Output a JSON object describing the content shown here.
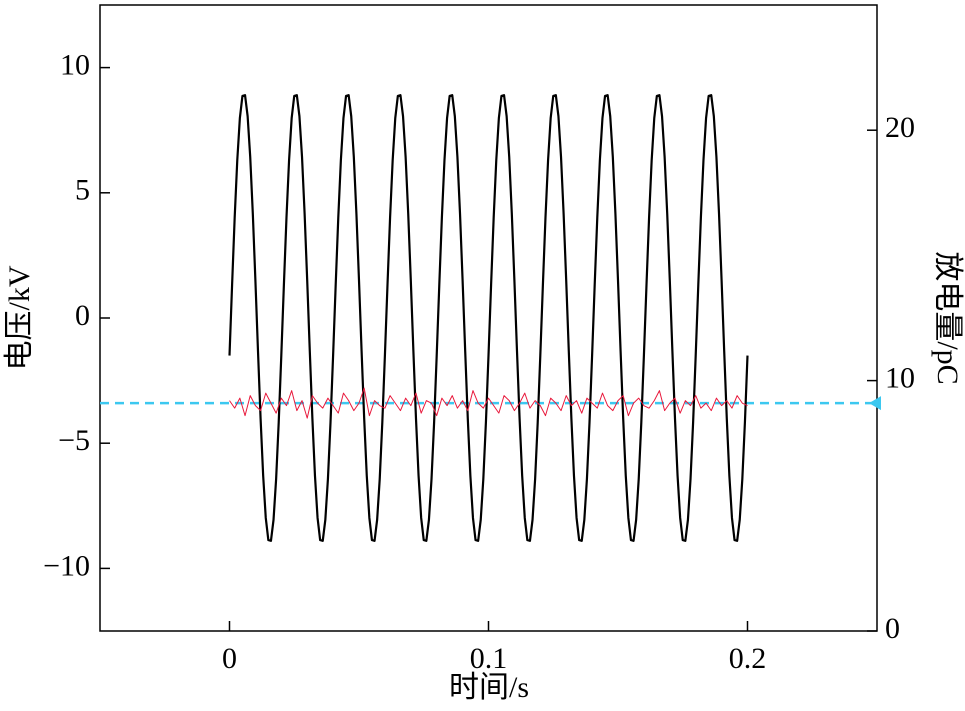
{
  "chart_data": {
    "type": "line",
    "xlabel": "时间/s",
    "ylabel": "电压/kV",
    "y2label": "放电量/pC",
    "xlim": [
      -0.05,
      0.25
    ],
    "xticks": [
      0,
      0.1,
      0.2
    ],
    "ylim": [
      -12.5,
      12.5
    ],
    "yticks": [
      {
        "value": -10,
        "label": "−10"
      },
      {
        "value": -5,
        "label": "−5"
      },
      0,
      5,
      10
    ],
    "y2lim": [
      0,
      25
    ],
    "y2ticks": [
      0,
      10,
      20
    ],
    "reference_line": {
      "value": 9.1,
      "axis": "y2",
      "color": "#3cc8f0"
    },
    "series": [
      {
        "color": "#000000",
        "axis": "y",
        "x": [
          0,
          0.001,
          0.002,
          0.003,
          0.004,
          0.005,
          0.006,
          0.007,
          0.008,
          0.009,
          0.01,
          0.011,
          0.012,
          0.013,
          0.014,
          0.015,
          0.016,
          0.017,
          0.018,
          0.019,
          0.02,
          0.021,
          0.022,
          0.023,
          0.024,
          0.025,
          0.026,
          0.027,
          0.028,
          0.029,
          0.03,
          0.031,
          0.032,
          0.033,
          0.034,
          0.035,
          0.036,
          0.037,
          0.038,
          0.039,
          0.04,
          0.041,
          0.042,
          0.043,
          0.044,
          0.045,
          0.046,
          0.047,
          0.048,
          0.049,
          0.05,
          0.051,
          0.052,
          0.053,
          0.054,
          0.055,
          0.056,
          0.057,
          0.058,
          0.059,
          0.06,
          0.061,
          0.062,
          0.063,
          0.064,
          0.065,
          0.066,
          0.067,
          0.068,
          0.069,
          0.07,
          0.071,
          0.072,
          0.073,
          0.074,
          0.075,
          0.076,
          0.077,
          0.078,
          0.079,
          0.08,
          0.081,
          0.082,
          0.083,
          0.084,
          0.085,
          0.086,
          0.087,
          0.088,
          0.089,
          0.09,
          0.091,
          0.092,
          0.093,
          0.094,
          0.095,
          0.096,
          0.097,
          0.098,
          0.099,
          0.1,
          0.101,
          0.102,
          0.103,
          0.104,
          0.105,
          0.106,
          0.107,
          0.108,
          0.109,
          0.11,
          0.111,
          0.112,
          0.113,
          0.114,
          0.115,
          0.116,
          0.117,
          0.118,
          0.119,
          0.12,
          0.121,
          0.122,
          0.123,
          0.124,
          0.125,
          0.126,
          0.127,
          0.128,
          0.129,
          0.13,
          0.131,
          0.132,
          0.133,
          0.134,
          0.135,
          0.136,
          0.137,
          0.138,
          0.139,
          0.14,
          0.141,
          0.142,
          0.143,
          0.144,
          0.145,
          0.146,
          0.147,
          0.148,
          0.149,
          0.15,
          0.151,
          0.152,
          0.153,
          0.154,
          0.155,
          0.156,
          0.157,
          0.158,
          0.159,
          0.16,
          0.161,
          0.162,
          0.163,
          0.164,
          0.165,
          0.166,
          0.167,
          0.168,
          0.169,
          0.17,
          0.171,
          0.172,
          0.173,
          0.174,
          0.175,
          0.176,
          0.177,
          0.178,
          0.179,
          0.18,
          0.181,
          0.182,
          0.183,
          0.184,
          0.185,
          0.186,
          0.187,
          0.188,
          0.189,
          0.19,
          0.191,
          0.192,
          0.193,
          0.194,
          0.195,
          0.196,
          0.197,
          0.198,
          0.199,
          0.2
        ],
        "values": [
          -1.5,
          1.32,
          4.01,
          6.3,
          7.98,
          8.87,
          8.9,
          8.06,
          6.43,
          4.17,
          1.5,
          -1.32,
          -4.01,
          -6.3,
          -7.98,
          -8.87,
          -8.9,
          -8.06,
          -6.43,
          -4.17,
          -1.5,
          1.32,
          4.01,
          6.3,
          7.98,
          8.87,
          8.9,
          8.06,
          6.43,
          4.17,
          1.5,
          -1.32,
          -4.01,
          -6.3,
          -7.98,
          -8.87,
          -8.9,
          -8.06,
          -6.43,
          -4.17,
          -1.5,
          1.32,
          4.01,
          6.3,
          7.98,
          8.87,
          8.9,
          8.06,
          6.43,
          4.17,
          1.5,
          -1.32,
          -4.01,
          -6.3,
          -7.98,
          -8.87,
          -8.9,
          -8.06,
          -6.43,
          -4.17,
          -1.5,
          1.32,
          4.01,
          6.3,
          7.98,
          8.87,
          8.9,
          8.06,
          6.43,
          4.17,
          1.5,
          -1.32,
          -4.01,
          -6.3,
          -7.98,
          -8.87,
          -8.9,
          -8.06,
          -6.43,
          -4.17,
          -1.5,
          1.32,
          4.01,
          6.3,
          7.98,
          8.87,
          8.9,
          8.06,
          6.43,
          4.17,
          1.5,
          -1.32,
          -4.01,
          -6.3,
          -7.98,
          -8.87,
          -8.9,
          -8.06,
          -6.43,
          -4.17,
          -1.5,
          1.32,
          4.01,
          6.3,
          7.98,
          8.87,
          8.9,
          8.06,
          6.43,
          4.17,
          1.5,
          -1.32,
          -4.01,
          -6.3,
          -7.98,
          -8.87,
          -8.9,
          -8.06,
          -6.43,
          -4.17,
          -1.5,
          1.32,
          4.01,
          6.3,
          7.98,
          8.87,
          8.9,
          8.06,
          6.43,
          4.17,
          1.5,
          -1.32,
          -4.01,
          -6.3,
          -7.98,
          -8.87,
          -8.9,
          -8.06,
          -6.43,
          -4.17,
          -1.5,
          1.32,
          4.01,
          6.3,
          7.98,
          8.87,
          8.9,
          8.06,
          6.43,
          4.17,
          1.5,
          -1.32,
          -4.01,
          -6.3,
          -7.98,
          -8.87,
          -8.9,
          -8.06,
          -6.43,
          -4.17,
          -1.5,
          1.32,
          4.01,
          6.3,
          7.98,
          8.87,
          8.9,
          8.06,
          6.43,
          4.17,
          1.5,
          -1.32,
          -4.01,
          -6.3,
          -7.98,
          -8.87,
          -8.9,
          -8.06,
          -6.43,
          -4.17,
          -1.5,
          1.32,
          4.01,
          6.3,
          7.98,
          8.87,
          8.9,
          8.06,
          6.43,
          4.17,
          1.5,
          -1.32,
          -4.01,
          -6.3,
          -7.98,
          -8.87,
          -8.9,
          -8.06,
          -6.43,
          -4.17,
          -1.5
        ]
      },
      {
        "color": "#e8193c",
        "axis": "y2",
        "x": [
          0,
          0.002,
          0.004,
          0.006,
          0.008,
          0.01,
          0.012,
          0.014,
          0.016,
          0.018,
          0.02,
          0.022,
          0.024,
          0.026,
          0.028,
          0.03,
          0.032,
          0.034,
          0.036,
          0.038,
          0.04,
          0.042,
          0.044,
          0.046,
          0.048,
          0.05,
          0.052,
          0.054,
          0.056,
          0.058,
          0.06,
          0.062,
          0.064,
          0.066,
          0.068,
          0.07,
          0.072,
          0.074,
          0.076,
          0.078,
          0.08,
          0.082,
          0.084,
          0.086,
          0.088,
          0.09,
          0.092,
          0.094,
          0.096,
          0.098,
          0.1,
          0.102,
          0.104,
          0.106,
          0.108,
          0.11,
          0.112,
          0.114,
          0.116,
          0.118,
          0.12,
          0.122,
          0.124,
          0.126,
          0.128,
          0.13,
          0.132,
          0.134,
          0.136,
          0.138,
          0.14,
          0.142,
          0.144,
          0.146,
          0.148,
          0.15,
          0.152,
          0.154,
          0.156,
          0.158,
          0.16,
          0.162,
          0.164,
          0.166,
          0.168,
          0.17,
          0.172,
          0.174,
          0.176,
          0.178,
          0.18,
          0.182,
          0.184,
          0.186,
          0.188,
          0.19,
          0.192,
          0.194,
          0.196,
          0.198,
          0.2
        ],
        "values": [
          9.2,
          8.9,
          9.3,
          8.6,
          9.4,
          9.0,
          8.8,
          9.5,
          9.1,
          8.7,
          9.3,
          9.0,
          9.6,
          8.8,
          9.2,
          8.5,
          9.4,
          9.1,
          8.9,
          9.3,
          9.0,
          8.7,
          9.5,
          9.2,
          8.8,
          9.1,
          9.7,
          8.6,
          9.2,
          9.0,
          8.9,
          9.4,
          9.1,
          8.8,
          9.3,
          9.0,
          9.5,
          8.7,
          9.2,
          9.1,
          8.6,
          9.3,
          9.0,
          9.4,
          8.9,
          9.2,
          8.8,
          9.6,
          9.1,
          8.9,
          9.3,
          9.0,
          8.7,
          9.4,
          9.2,
          8.8,
          9.1,
          9.5,
          8.9,
          9.2,
          9.0,
          8.6,
          9.3,
          9.1,
          8.8,
          9.4,
          9.0,
          9.2,
          8.7,
          9.3,
          9.1,
          8.9,
          9.5,
          9.0,
          8.8,
          9.2,
          9.4,
          8.6,
          9.1,
          9.3,
          9.0,
          8.9,
          9.2,
          9.6,
          8.8,
          9.1,
          9.3,
          8.7,
          9.2,
          9.0,
          9.4,
          8.9,
          9.1,
          8.8,
          9.3,
          9.0,
          9.2,
          8.9,
          9.4,
          9.1,
          9.0
        ]
      }
    ]
  }
}
